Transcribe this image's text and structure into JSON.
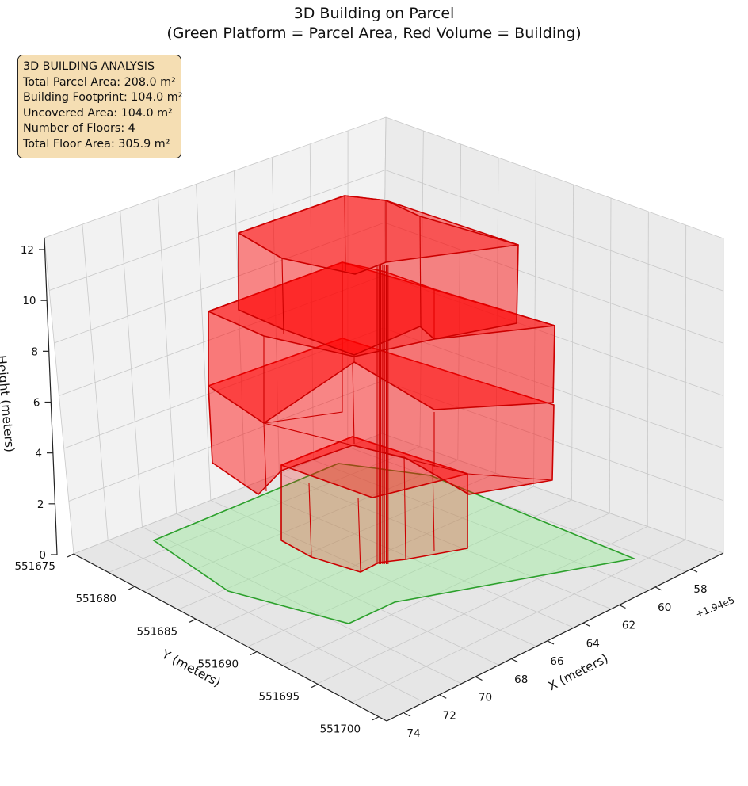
{
  "chart_data": {
    "type": "3d-polygon",
    "title": "3D Building on Parcel",
    "subtitle": "(Green Platform = Parcel Area, Red Volume = Building)",
    "xlabel": "X (meters)",
    "ylabel": "Y (meters)",
    "zlabel": "Height (meters)",
    "x_offset_label": "+1.94e5",
    "x_ticks": [
      "58",
      "60",
      "62",
      "64",
      "66",
      "68",
      "70",
      "72",
      "74"
    ],
    "y_ticks": [
      "551675",
      "551680",
      "551685",
      "551690",
      "551695",
      "551700"
    ],
    "z_ticks": [
      "0",
      "2",
      "4",
      "6",
      "8",
      "10",
      "12"
    ],
    "colors": {
      "parcel_fill": "#90ee90",
      "parcel_edge": "#2ca02c",
      "building_fill": "#ff0000",
      "building_edge": "#cc0000"
    },
    "info": {
      "heading": "3D BUILDING ANALYSIS",
      "lines": [
        "Total Parcel Area: 208.0 m²",
        "Building Footprint: 104.0 m²",
        "Uncovered Area: 104.0 m²",
        "Number of Floors: 4",
        "Total Floor Area: 305.9 m²"
      ]
    },
    "floors": [
      {
        "level": 1,
        "z_bottom": 0,
        "z_top": 3.3
      },
      {
        "level": 2,
        "z_bottom": 3.3,
        "z_top": 6.3
      },
      {
        "level": 3,
        "z_bottom": 6.3,
        "z_top": 9.3
      },
      {
        "level": 4,
        "z_bottom": 9.3,
        "z_top": 12.3
      }
    ]
  }
}
